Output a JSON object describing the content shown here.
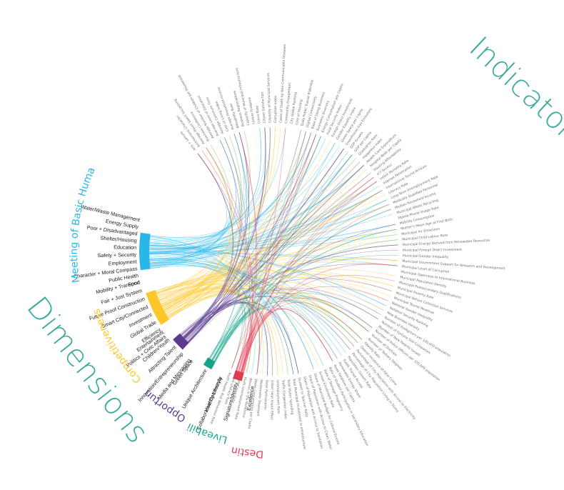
{
  "titles": {
    "indicators": "Indicators",
    "dimensions": "Dimensions"
  },
  "colors": {
    "title": "#3aaa9a",
    "meeting": "#29b6e8",
    "competitiveness": "#ffc629",
    "opportunity": "#5b3b8f",
    "liveability": "#16a38a",
    "destiny": "#e8364f",
    "indicator_text": "#6f6f6f"
  },
  "groups": [
    {
      "key": "meeting",
      "name": "Meeting of Basic Human Needs",
      "color": "#29b6e8",
      "subs": [
        "Water/Waste Management",
        "Energy Supply",
        "Poor + Disadvantaged",
        "Shelter/Housing",
        "Education",
        "Safety + Security",
        "Employment",
        "Character + Moral Compass",
        "Public Health",
        "Food"
      ]
    },
    {
      "key": "competitiveness",
      "name": "Competitiveness",
      "color": "#ffc629",
      "subs": [
        "Mobility + Transport",
        "Fair + Just System",
        "Future Proof Construction",
        "Smart City/Connected",
        "Investment",
        "Global Trade",
        "Efficiency",
        "Politics + Civic Affairs"
      ]
    },
    {
      "key": "opportunity",
      "name": "Opportunity",
      "color": "#5b3b8f",
      "subs": [
        "Entertainment",
        "Children/Youth",
        "Attracting Talent",
        "Innovation/Entrepreneurship",
        "Media and Messaging"
      ]
    },
    {
      "key": "liveability",
      "name": "Liveability",
      "color": "#16a38a",
      "subs": [
        "Green Space",
        "Unique Architecture",
        "Healthy Lifestyle"
      ]
    },
    {
      "key": "destiny",
      "name": "Destiny",
      "color": "#e8364f",
      "subs": [
        "Collaborative Community",
        "Signature/Identity",
        "Excellence"
      ]
    }
  ],
  "indicators": [
    "Arts + Leisure",
    "Architectural Character",
    "Average Hours Spent Socializing",
    "Business Confidence",
    "Average Number of Children per Household",
    "Average Level of Education",
    "Average Commute Time",
    "Cost of Living Index",
    "Average Household Income",
    "Bikeability Rate",
    "Business Registrations",
    "Capacity of Municipal Infrastructure",
    "Carbon Footprint",
    "Crime Rate",
    "Citizen Satisfaction",
    "Capacity of Municipal Services",
    "Corruption Index",
    "Cases of Death by Non-Communicable Diseases",
    "Community Engagement",
    "City Global Ranking",
    "Cost of Housing",
    "Daily Public Transit Ridership",
    "Digital Connectivity",
    "Ease of Doing Business",
    "Economic Diversity",
    "Energy Consumption per Capita",
    "Food Security Index",
    "Foreign Direct Investment",
    "Gender Equality Index",
    "Green Space per Capita",
    "Greenhouse Gas Emissions",
    "GDP Growth",
    "GDP per Capita",
    "Graduation Rate",
    "Happiness Index",
    "Health Care Expenditure",
    "Hospital Beds per Capita",
    "Housing Affordability",
    "ICT Access",
    "Infant Mortality Rate",
    "Internet Penetration",
    "International Tourist Arrivals",
    "Literacy Rate",
    "Long-Term Unemployment Rate",
    "Medically Qualified Personnel",
    "Median Household Income",
    "Municipal Waste Recycling",
    "Mobile Phone Usage Rate",
    "Mobility Consumption",
    "Mother's Mean Age at First Birth",
    "Municipal Air Emissions",
    "Municipal Child Labour Rate",
    "Municipal Energy Derived from Renewable Resources",
    "Municipal Foreign Direct Investment",
    "Municipal Gender Inequality",
    "Municipal Government Support for Research and Development",
    "Municipal Level of Corruption",
    "Municipal Openness to International Business",
    "Municipal Population Density",
    "Municipal Postsecondary Qualifications",
    "Municipal Poverty Rate",
    "Municipal Refuse Collection Services",
    "Municipal Tourist Revenue",
    "National Gender Inequality",
    "National Security Ranking",
    "New Business Density",
    "Number of Firefighters per 100,000 population",
    "Number of Fortune 500 Companies",
    "Number of New Patents Issued",
    "Number of Police Officers per 100,000 population",
    "Number of Startups",
    "Number of Tertiary Degrees",
    "Obesity Rate",
    "Overall Incidence of Fatal Crime",
    "Percentage of City Population with Access to Electricity",
    "Percentage of City Population Living in Slums",
    "Population Growth Rate",
    "Public Transit Access",
    "Renewable Energy Share",
    "Road Fatalities per Capita",
    "Rate of Student Participation in Secondary Education",
    "Rate of Teenage Pregnancy",
    "School Enrollment Rate",
    "Share of Municipal Budget for Cultural Events",
    "Share of Population with Access to Clean Water",
    "Share of Population with Access to Sanitation",
    "Student to Teacher Ratio",
    "Total Municipal Investment in Infrastructure",
    "Total Visitor Spending",
    "Traffic Congestion Index",
    "Unemployment Rate",
    "Urban Heat Island Effect",
    "Voter Participation",
    "Wastewater Treatment",
    "Water Consumption per Capita",
    "Women in the Workforce",
    "Youth Unemployment Rate",
    "Youth Crime Rate",
    "Youth Literacy Rate",
    "Youth Health Risk Behaviour Rate"
  ]
}
